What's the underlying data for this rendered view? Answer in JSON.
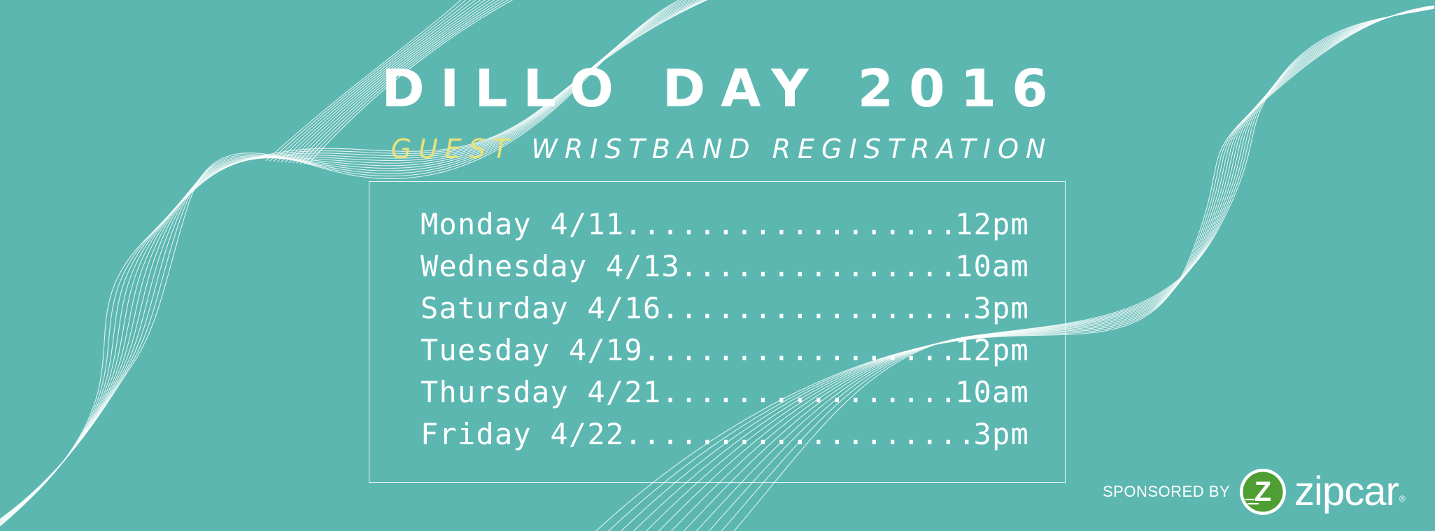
{
  "header": {
    "title": "DILLO DAY 2016",
    "subtitle_highlight": "GUEST",
    "subtitle_rest": "WRISTBAND REGISTRATION"
  },
  "schedule": [
    {
      "day": "Monday 4/11",
      "time": "12pm"
    },
    {
      "day": "Wednesday 4/13",
      "time": "10am"
    },
    {
      "day": "Saturday 4/16",
      "time": "3pm"
    },
    {
      "day": "Tuesday 4/19",
      "time": "12pm"
    },
    {
      "day": "Thursday 4/21",
      "time": "10am"
    },
    {
      "day": "Friday 4/22",
      "time": "3pm"
    }
  ],
  "sponsor": {
    "label": "SPONSORED BY",
    "brand": "zipcar",
    "brand_mark": "Z",
    "registered": "®",
    "logo_icon": "zipcar-z-logo-icon"
  },
  "colors": {
    "background": "#5cb7b1",
    "text": "#ffffff",
    "accent": "#e9e27a",
    "logo_green": "#4f9e33"
  },
  "decoration": {
    "icon": "white-line-wave-ribbons"
  }
}
